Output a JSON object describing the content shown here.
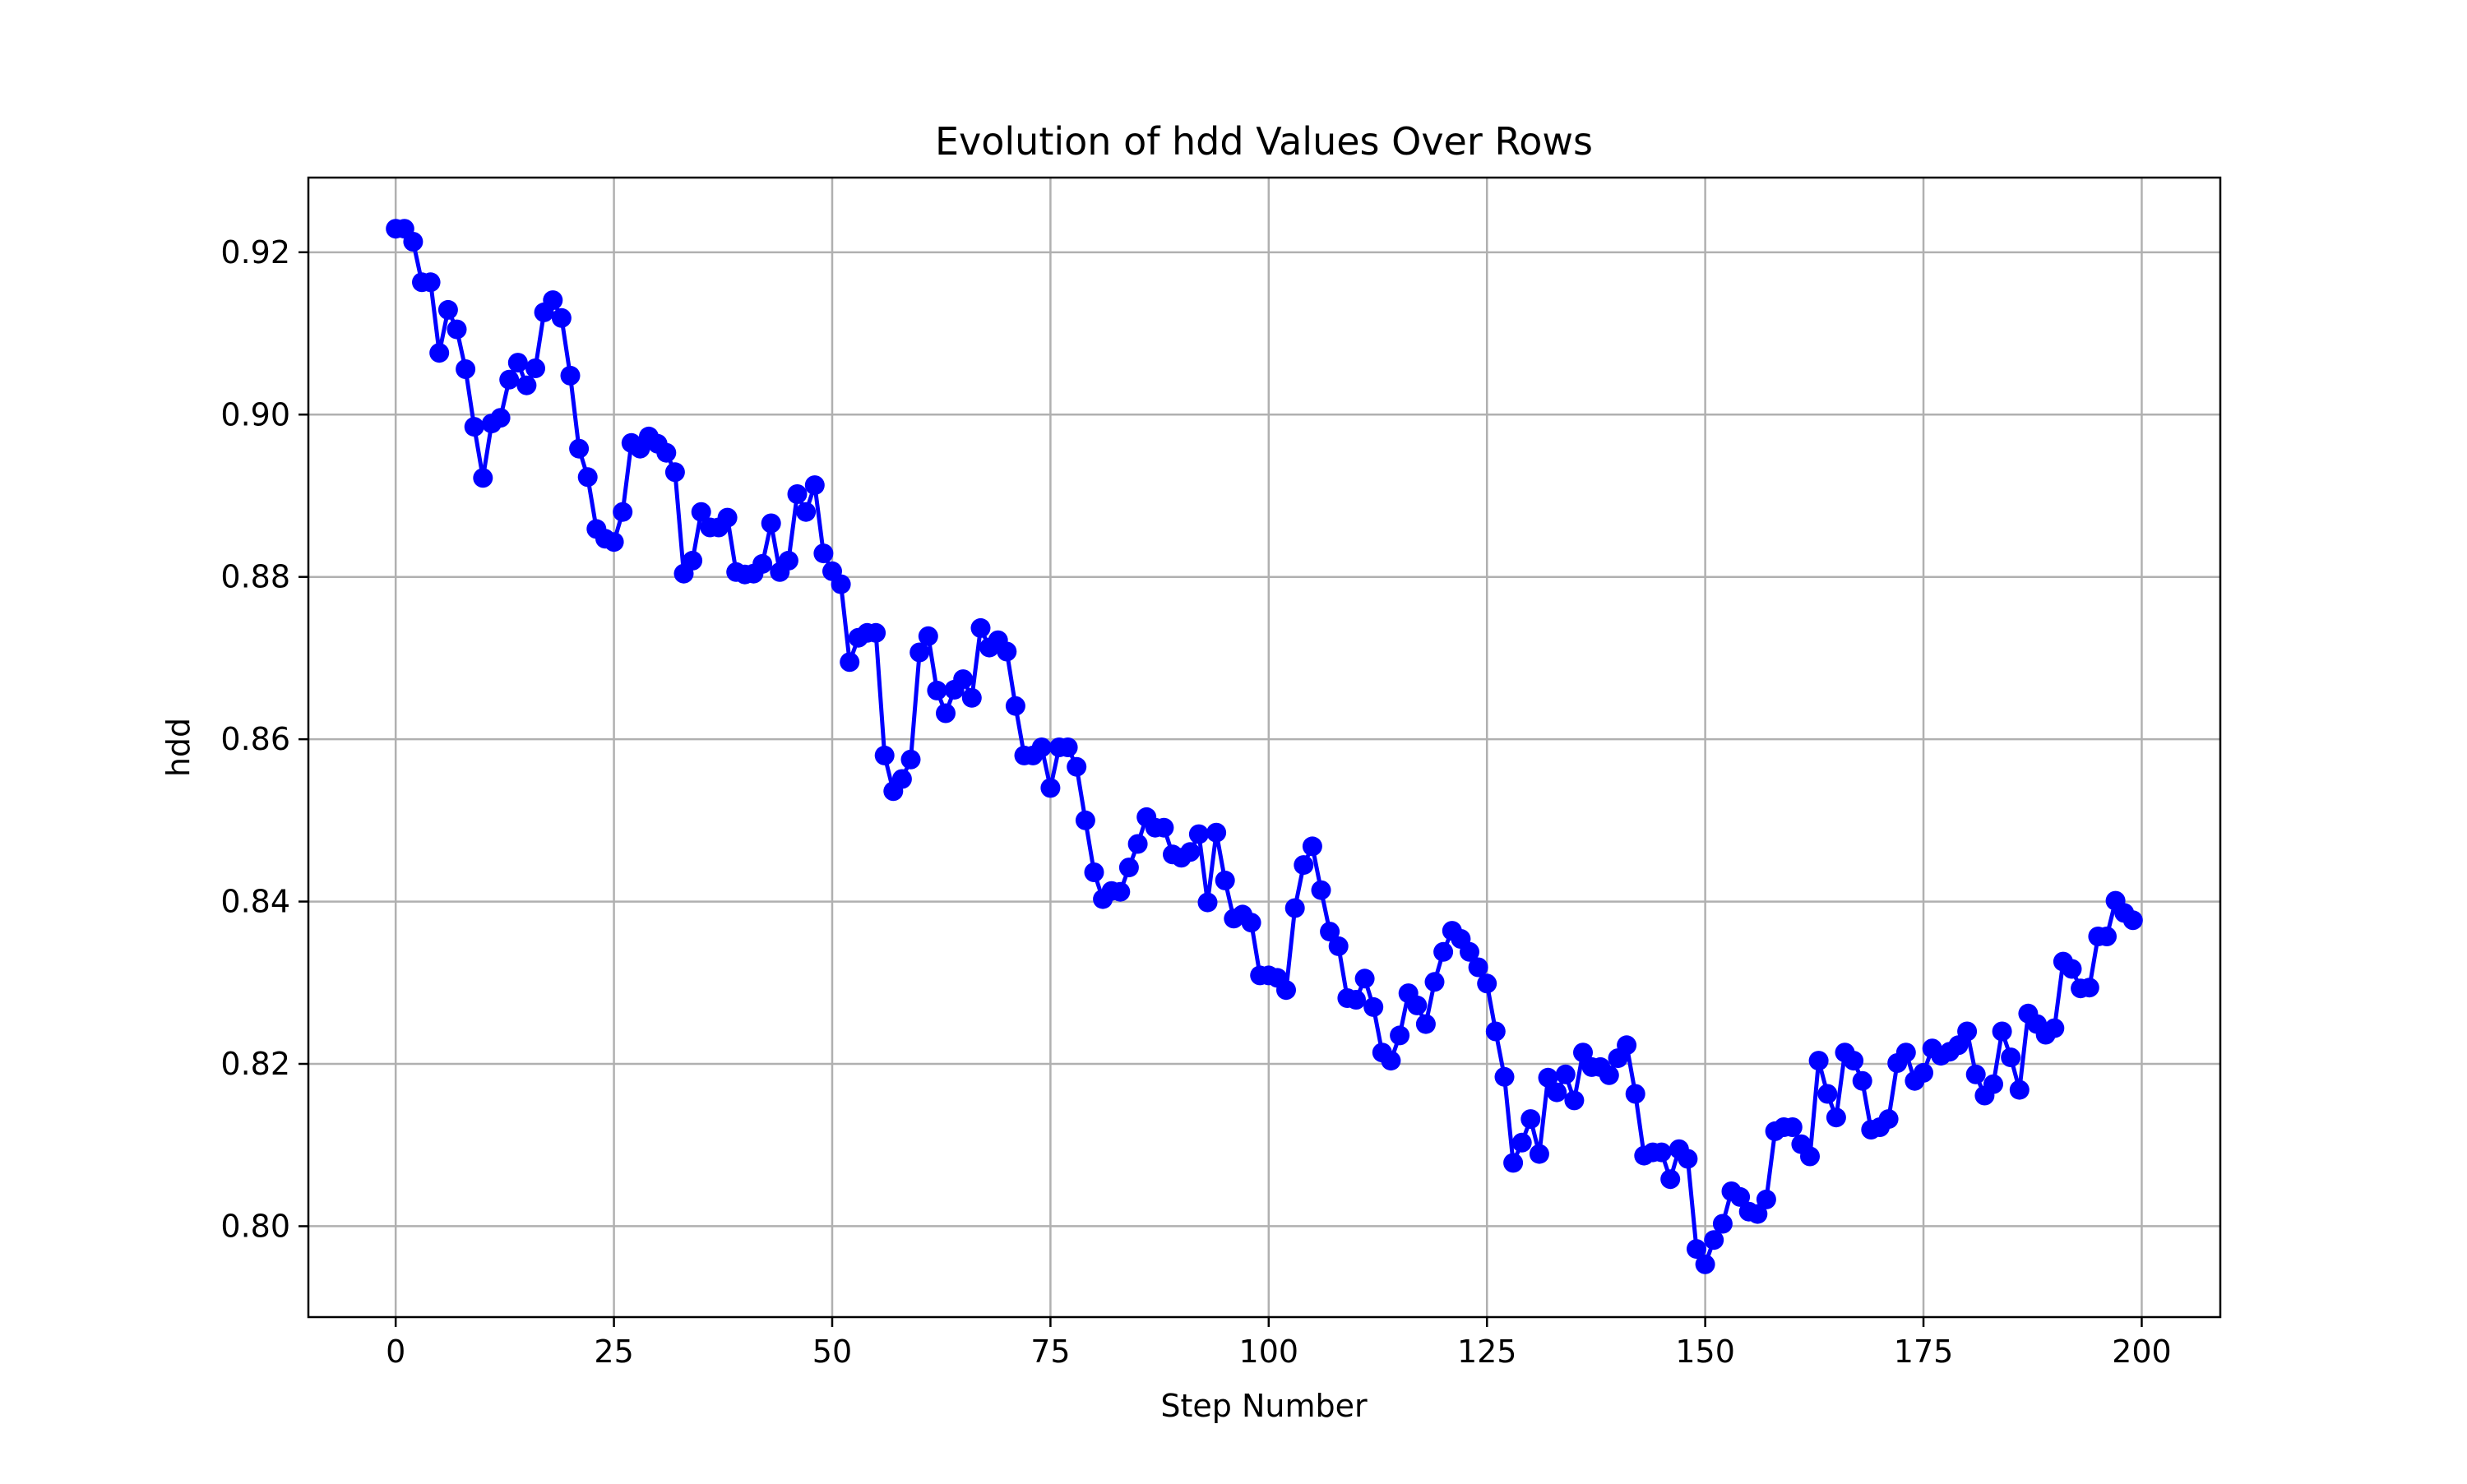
{
  "chart_data": {
    "type": "line",
    "title": "Evolution of hdd Values Over Rows",
    "xlabel": "Step Number",
    "ylabel": "hdd",
    "xlim": [
      -10,
      209
    ],
    "ylim": [
      0.7888,
      0.9292
    ],
    "xticks": [
      0,
      25,
      50,
      75,
      100,
      125,
      150,
      175,
      200
    ],
    "yticks": [
      0.8,
      0.82,
      0.84,
      0.86,
      0.88,
      0.9,
      0.92
    ],
    "grid": true,
    "legend": "none",
    "series_color": "#0000ff",
    "marker": "circle",
    "x": [
      0,
      1,
      2,
      3,
      4,
      5,
      6,
      7,
      8,
      9,
      10,
      11,
      12,
      13,
      14,
      15,
      16,
      17,
      18,
      19,
      20,
      21,
      22,
      23,
      24,
      25,
      26,
      27,
      28,
      29,
      30,
      31,
      32,
      33,
      34,
      35,
      36,
      37,
      38,
      39,
      40,
      41,
      42,
      43,
      44,
      45,
      46,
      47,
      48,
      49,
      50,
      51,
      52,
      53,
      54,
      55,
      56,
      57,
      58,
      59,
      60,
      61,
      62,
      63,
      64,
      65,
      66,
      67,
      68,
      69,
      70,
      71,
      72,
      73,
      74,
      75,
      76,
      77,
      78,
      79,
      80,
      81,
      82,
      83,
      84,
      85,
      86,
      87,
      88,
      89,
      90,
      91,
      92,
      93,
      94,
      95,
      96,
      97,
      98,
      99,
      100,
      101,
      102,
      103,
      104,
      105,
      106,
      107,
      108,
      109,
      110,
      111,
      112,
      113,
      114,
      115,
      116,
      117,
      118,
      119,
      120,
      121,
      122,
      123,
      124,
      125,
      126,
      127,
      128,
      129,
      130,
      131,
      132,
      133,
      134,
      135,
      136,
      137,
      138,
      139,
      140,
      141,
      142,
      143,
      144,
      145,
      146,
      147,
      148,
      149,
      150,
      151,
      152,
      153,
      154,
      155,
      156,
      157,
      158,
      159,
      160,
      161,
      162,
      163,
      164,
      165,
      166,
      167,
      168,
      169,
      170,
      171,
      172,
      173,
      174,
      175,
      176,
      177,
      178,
      179,
      180,
      181,
      182,
      183,
      184,
      185,
      186,
      187,
      188,
      189,
      190,
      191,
      192,
      193,
      194,
      195,
      196,
      197,
      198,
      199
    ],
    "values": [
      0.9229,
      0.9229,
      0.9213,
      0.9163,
      0.9163,
      0.9076,
      0.9129,
      0.9105,
      0.9056,
      0.8985,
      0.8922,
      0.8989,
      0.8996,
      0.9043,
      0.9064,
      0.9036,
      0.9057,
      0.9126,
      0.9141,
      0.9119,
      0.9048,
      0.8958,
      0.8923,
      0.8859,
      0.8847,
      0.8843,
      0.888,
      0.8965,
      0.8958,
      0.8973,
      0.8964,
      0.8953,
      0.8929,
      0.8804,
      0.882,
      0.888,
      0.8861,
      0.8861,
      0.8873,
      0.8806,
      0.8803,
      0.8804,
      0.8816,
      0.8866,
      0.8806,
      0.882,
      0.8902,
      0.888,
      0.8913,
      0.8829,
      0.8807,
      0.8791,
      0.8695,
      0.8725,
      0.8731,
      0.8731,
      0.858,
      0.8536,
      0.8551,
      0.8575,
      0.8707,
      0.8727,
      0.866,
      0.8632,
      0.8661,
      0.8674,
      0.8651,
      0.8737,
      0.8713,
      0.8722,
      0.8708,
      0.8641,
      0.858,
      0.858,
      0.859,
      0.854,
      0.859,
      0.859,
      0.8566,
      0.85,
      0.8436,
      0.8403,
      0.8413,
      0.8412,
      0.8442,
      0.8471,
      0.8504,
      0.8491,
      0.8491,
      0.8458,
      0.8454,
      0.8461,
      0.8483,
      0.8399,
      0.8485,
      0.8426,
      0.8379,
      0.8384,
      0.8374,
      0.8309,
      0.8309,
      0.8306,
      0.8291,
      0.8392,
      0.8445,
      0.8468,
      0.8414,
      0.8363,
      0.8345,
      0.8281,
      0.8279,
      0.8305,
      0.827,
      0.8214,
      0.8204,
      0.8235,
      0.8287,
      0.8272,
      0.8249,
      0.8301,
      0.8338,
      0.8364,
      0.8354,
      0.8338,
      0.8319,
      0.8299,
      0.824,
      0.8184,
      0.8078,
      0.8103,
      0.8132,
      0.8089,
      0.8183,
      0.8165,
      0.8187,
      0.8155,
      0.8214,
      0.8196,
      0.8196,
      0.8186,
      0.8207,
      0.8223,
      0.8163,
      0.8087,
      0.8091,
      0.8091,
      0.8058,
      0.8095,
      0.8083,
      0.7972,
      0.7953,
      0.7983,
      0.8003,
      0.8043,
      0.8036,
      0.8018,
      0.8015,
      0.8033,
      0.8117,
      0.8122,
      0.8122,
      0.8101,
      0.8086,
      0.8204,
      0.8163,
      0.8134,
      0.8214,
      0.8204,
      0.8179,
      0.8119,
      0.8122,
      0.8132,
      0.8201,
      0.8214,
      0.8179,
      0.8189,
      0.8219,
      0.821,
      0.8215,
      0.8223,
      0.824,
      0.8187,
      0.8161,
      0.8175,
      0.824,
      0.8208,
      0.8168,
      0.8262,
      0.8249,
      0.8236,
      0.8244,
      0.8326,
      0.8317,
      0.8293,
      0.8294,
      0.8357,
      0.8357,
      0.8401,
      0.8386,
      0.8377
    ]
  }
}
